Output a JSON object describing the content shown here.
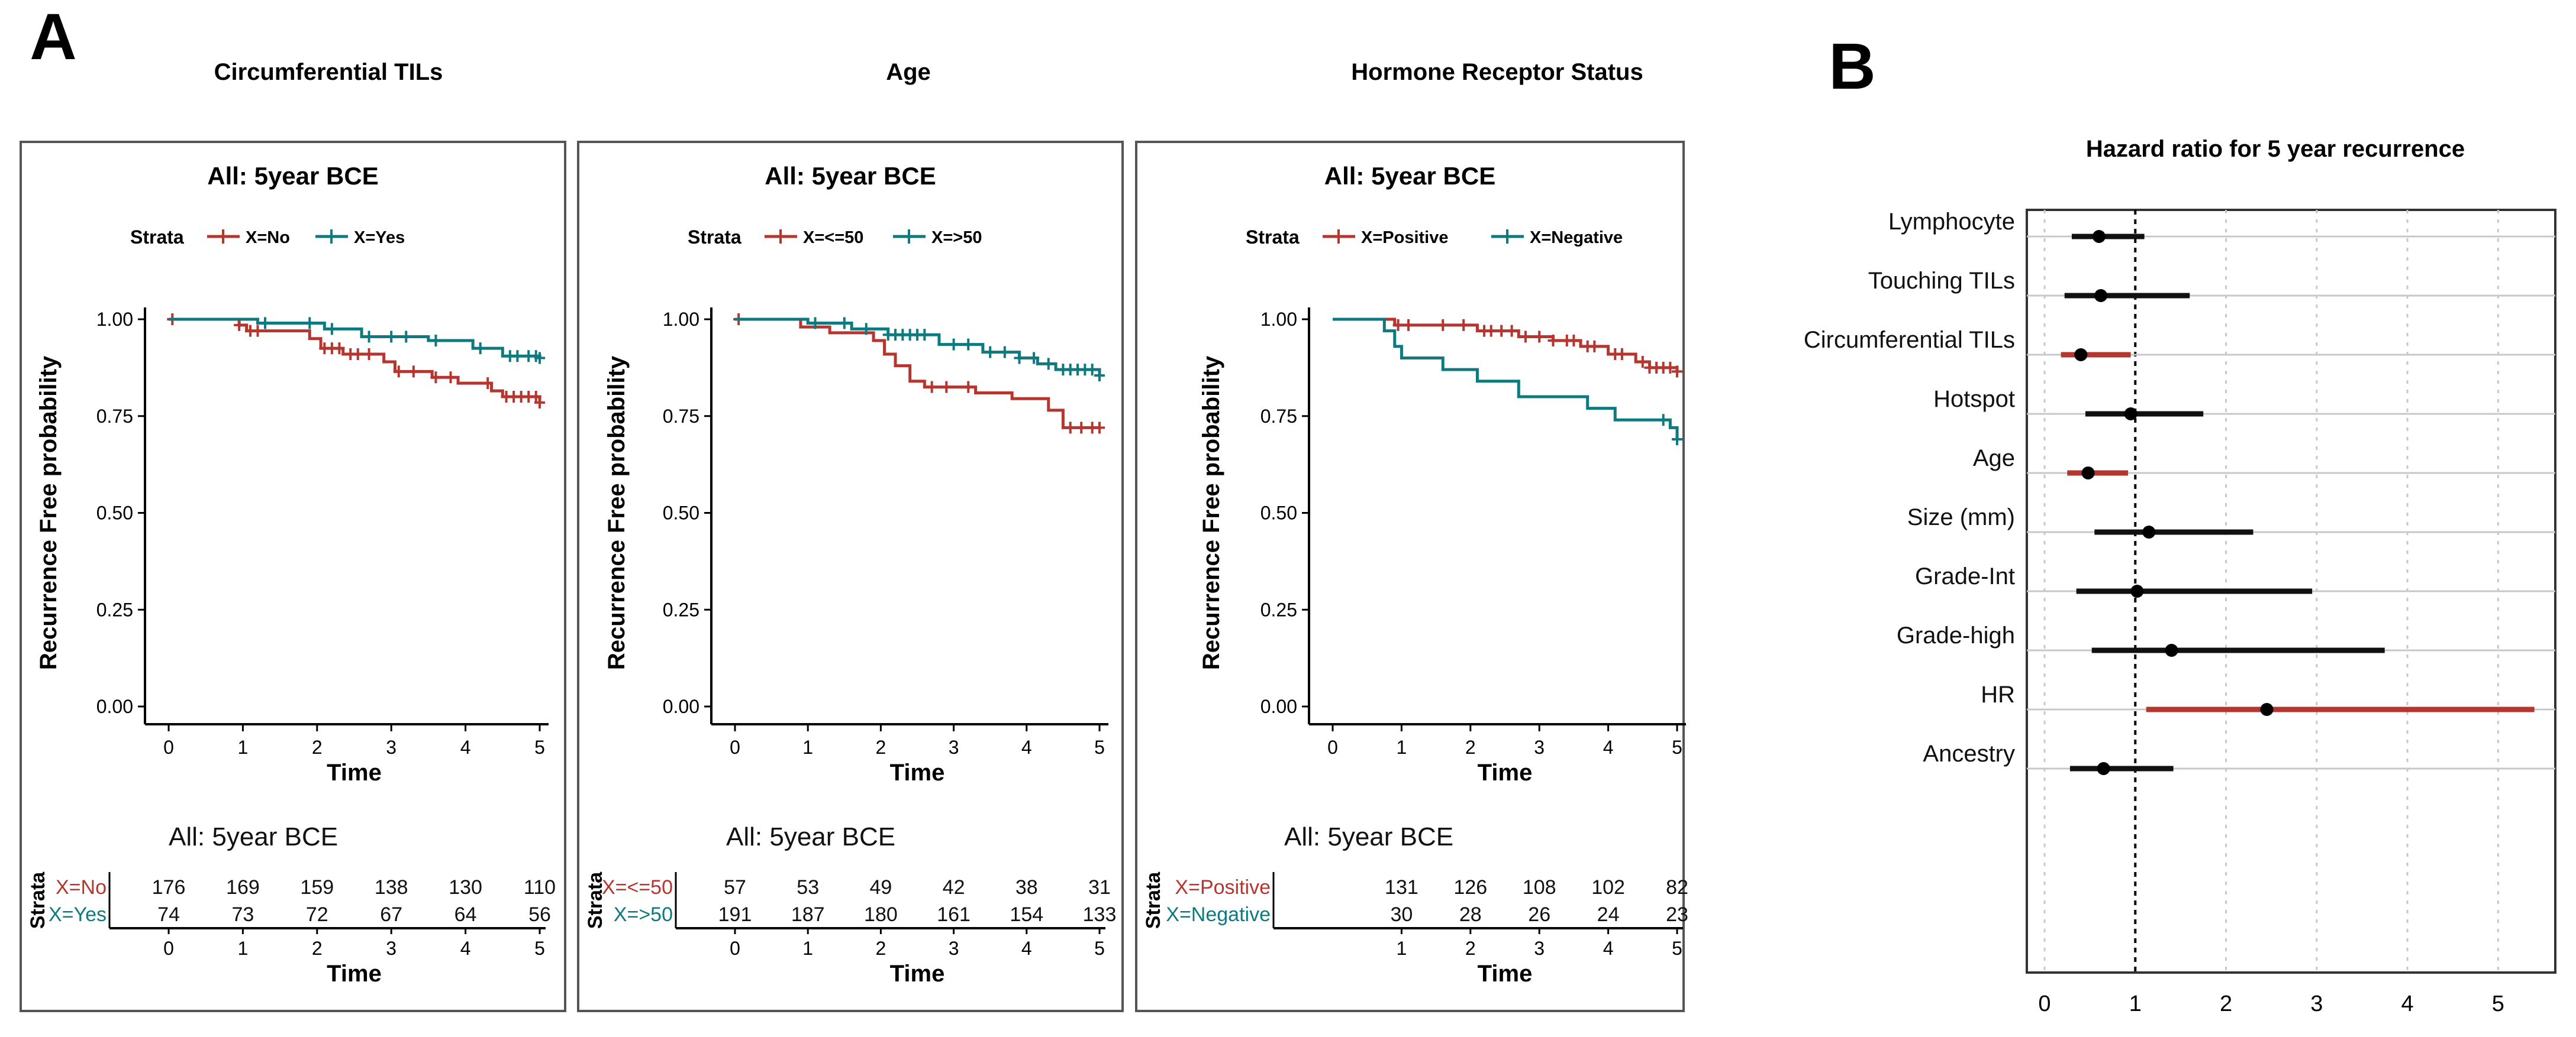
{
  "panel_a": {
    "letter": "A",
    "headers": [
      "Circumferential TILs",
      "Age",
      "Hormone Receptor Status"
    ]
  },
  "panel_b": {
    "letter": "B"
  },
  "colors": {
    "red": "#B5352F",
    "teal": "#0E7A80",
    "black": "#111111",
    "grid": "#c8c8c8"
  },
  "chart_data": [
    {
      "type": "line",
      "subtype": "kaplan-meier",
      "title": "All: 5year BCE",
      "legend_title": "Strata",
      "xlabel": "Time",
      "ylabel": "Recurrence Free probability",
      "xlim": [
        0,
        5
      ],
      "ylim": [
        0,
        1
      ],
      "x_ticks": [
        "0",
        "1",
        "2",
        "3",
        "4",
        "5"
      ],
      "y_ticks": [
        "0.00",
        "0.25",
        "0.50",
        "0.75",
        "1.00"
      ],
      "series": [
        {
          "name": "X=No",
          "color": "red",
          "steps": [
            [
              0,
              1.0
            ],
            [
              0.95,
              0.985
            ],
            [
              1.05,
              0.97
            ],
            [
              1.9,
              0.95
            ],
            [
              2.05,
              0.925
            ],
            [
              2.35,
              0.91
            ],
            [
              2.9,
              0.89
            ],
            [
              3.05,
              0.865
            ],
            [
              3.55,
              0.85
            ],
            [
              3.9,
              0.835
            ],
            [
              4.35,
              0.815
            ],
            [
              4.5,
              0.8
            ],
            [
              5,
              0.785
            ]
          ],
          "censors": [
            0.05,
            0.95,
            1.1,
            1.2,
            2.1,
            2.2,
            2.3,
            2.45,
            2.55,
            2.7,
            3.1,
            3.3,
            3.6,
            3.8,
            4.3,
            4.55,
            4.65,
            4.75,
            4.85,
            4.95,
            5.0
          ]
        },
        {
          "name": "X=Yes",
          "color": "teal",
          "steps": [
            [
              0,
              1.0
            ],
            [
              1.2,
              0.99
            ],
            [
              2.1,
              0.975
            ],
            [
              2.6,
              0.955
            ],
            [
              3.5,
              0.945
            ],
            [
              4.1,
              0.925
            ],
            [
              4.5,
              0.905
            ],
            [
              5,
              0.9
            ]
          ],
          "censors": [
            1.3,
            1.9,
            2.2,
            2.7,
            3.0,
            3.2,
            3.6,
            4.2,
            4.6,
            4.7,
            4.85,
            4.95,
            5.0
          ]
        }
      ],
      "risk_table": {
        "title": "All: 5year BCE",
        "y_label": "Strata",
        "x_ticks": [
          "0",
          "1",
          "2",
          "3",
          "4",
          "5"
        ],
        "xlabel": "Time",
        "rows": [
          {
            "label": "X=No",
            "color": "red",
            "values": [
              "176",
              "169",
              "159",
              "138",
              "130",
              "110"
            ]
          },
          {
            "label": "X=Yes",
            "color": "teal",
            "values": [
              "74",
              "73",
              "72",
              "67",
              "64",
              "56"
            ]
          }
        ]
      }
    },
    {
      "type": "line",
      "subtype": "kaplan-meier",
      "title": "All: 5year BCE",
      "legend_title": "Strata",
      "xlabel": "Time",
      "ylabel": "Recurrence Free probability",
      "xlim": [
        0,
        5
      ],
      "ylim": [
        0,
        1
      ],
      "x_ticks": [
        "0",
        "1",
        "2",
        "3",
        "4",
        "5"
      ],
      "y_ticks": [
        "0.00",
        "0.25",
        "0.50",
        "0.75",
        "1.00"
      ],
      "series": [
        {
          "name": "X=<=50",
          "color": "red",
          "steps": [
            [
              0,
              1.0
            ],
            [
              0.9,
              0.98
            ],
            [
              1.3,
              0.965
            ],
            [
              1.9,
              0.945
            ],
            [
              2.05,
              0.91
            ],
            [
              2.2,
              0.88
            ],
            [
              2.4,
              0.84
            ],
            [
              2.6,
              0.825
            ],
            [
              3.3,
              0.81
            ],
            [
              3.8,
              0.795
            ],
            [
              4.3,
              0.765
            ],
            [
              4.5,
              0.72
            ],
            [
              5,
              0.72
            ]
          ],
          "censors": [
            0.05,
            2.7,
            2.9,
            3.2,
            4.6,
            4.75,
            4.9,
            5.0
          ]
        },
        {
          "name": "X=>50",
          "color": "teal",
          "steps": [
            [
              0,
              1.0
            ],
            [
              1.0,
              0.99
            ],
            [
              1.6,
              0.975
            ],
            [
              2.1,
              0.96
            ],
            [
              2.8,
              0.935
            ],
            [
              3.4,
              0.915
            ],
            [
              3.9,
              0.9
            ],
            [
              4.15,
              0.885
            ],
            [
              4.4,
              0.87
            ],
            [
              5,
              0.855
            ]
          ],
          "censors": [
            1.1,
            1.5,
            1.8,
            2.1,
            2.2,
            2.3,
            2.4,
            2.5,
            2.6,
            3.0,
            3.2,
            3.5,
            3.7,
            3.9,
            4.1,
            4.3,
            4.5,
            4.6,
            4.7,
            4.8,
            4.9,
            5.0
          ]
        }
      ],
      "risk_table": {
        "title": "All: 5year BCE",
        "y_label": "Strata",
        "x_ticks": [
          "0",
          "1",
          "2",
          "3",
          "4",
          "5"
        ],
        "xlabel": "Time",
        "rows": [
          {
            "label": "X=<=50",
            "color": "red",
            "values": [
              "57",
              "53",
              "49",
              "42",
              "38",
              "31"
            ]
          },
          {
            "label": "X=>50",
            "color": "teal",
            "values": [
              "191",
              "187",
              "180",
              "161",
              "154",
              "133"
            ]
          }
        ]
      }
    },
    {
      "type": "line",
      "subtype": "kaplan-meier",
      "title": "All: 5year BCE",
      "legend_title": "Strata",
      "xlabel": "Time",
      "ylabel": "Recurrence Free probability",
      "xlim": [
        0,
        5
      ],
      "ylim": [
        0,
        1
      ],
      "x_ticks": [
        "0",
        "1",
        "2",
        "3",
        "4",
        "5"
      ],
      "y_ticks": [
        "0.00",
        "0.25",
        "0.50",
        "0.75",
        "1.00"
      ],
      "series": [
        {
          "name": "X=Positive",
          "color": "red",
          "steps": [
            [
              0,
              1.0
            ],
            [
              0.9,
              0.985
            ],
            [
              2.1,
              0.97
            ],
            [
              2.7,
              0.955
            ],
            [
              3.2,
              0.945
            ],
            [
              3.6,
              0.93
            ],
            [
              4.0,
              0.91
            ],
            [
              4.4,
              0.89
            ],
            [
              4.6,
              0.875
            ],
            [
              5,
              0.865
            ]
          ],
          "censors": [
            0.95,
            1.1,
            1.6,
            1.9,
            2.2,
            2.3,
            2.45,
            2.6,
            2.8,
            3.0,
            3.2,
            3.4,
            3.5,
            3.7,
            3.8,
            4.1,
            4.2,
            4.5,
            4.6,
            4.7,
            4.8,
            4.9,
            5.0
          ]
        },
        {
          "name": "X=Negative",
          "color": "teal",
          "steps": [
            [
              0,
              1.0
            ],
            [
              0.75,
              0.97
            ],
            [
              0.9,
              0.93
            ],
            [
              1.0,
              0.9
            ],
            [
              1.6,
              0.87
            ],
            [
              2.1,
              0.84
            ],
            [
              2.7,
              0.8
            ],
            [
              3.7,
              0.77
            ],
            [
              4.1,
              0.74
            ],
            [
              4.9,
              0.72
            ],
            [
              5,
              0.69
            ]
          ],
          "censors": [
            4.8,
            5.0
          ]
        }
      ],
      "risk_table": {
        "title": "All: 5year BCE",
        "y_label": "Strata",
        "x_ticks": [
          "1",
          "2",
          "3",
          "4",
          "5"
        ],
        "xlabel": "Time",
        "rows": [
          {
            "label": "X=Positive",
            "color": "red",
            "values": [
              "131",
              "126",
              "108",
              "102",
              "82"
            ]
          },
          {
            "label": "X=Negative",
            "color": "teal",
            "values": [
              "30",
              "28",
              "26",
              "24",
              "23"
            ]
          }
        ]
      }
    },
    {
      "type": "forest",
      "title": "Hazard  ratio for 5 year recurrence",
      "xlim": [
        0,
        5.5
      ],
      "x_ticks": [
        "0",
        "1",
        "2",
        "3",
        "4",
        "5"
      ],
      "reference": 1,
      "rows": [
        {
          "label": "Lymphocyte",
          "hr": 0.6,
          "lo": 0.3,
          "hi": 1.1,
          "color": "black"
        },
        {
          "label": "Touching TILs",
          "hr": 0.62,
          "lo": 0.22,
          "hi": 1.6,
          "color": "black"
        },
        {
          "label": "Circumferential TILs",
          "hr": 0.4,
          "lo": 0.18,
          "hi": 0.95,
          "color": "red"
        },
        {
          "label": "Hotspot",
          "hr": 0.95,
          "lo": 0.45,
          "hi": 1.75,
          "color": "black"
        },
        {
          "label": "Age",
          "hr": 0.48,
          "lo": 0.25,
          "hi": 0.92,
          "color": "red"
        },
        {
          "label": "Size (mm)",
          "hr": 1.15,
          "lo": 0.55,
          "hi": 2.3,
          "color": "black"
        },
        {
          "label": "Grade-Int",
          "hr": 1.02,
          "lo": 0.35,
          "hi": 2.95,
          "color": "black"
        },
        {
          "label": "Grade-high",
          "hr": 1.4,
          "lo": 0.52,
          "hi": 3.75,
          "color": "black"
        },
        {
          "label": "HR",
          "hr": 2.45,
          "lo": 1.12,
          "hi": 5.4,
          "color": "red"
        },
        {
          "label": "Ancestry",
          "hr": 0.65,
          "lo": 0.28,
          "hi": 1.42,
          "color": "black"
        }
      ]
    }
  ]
}
